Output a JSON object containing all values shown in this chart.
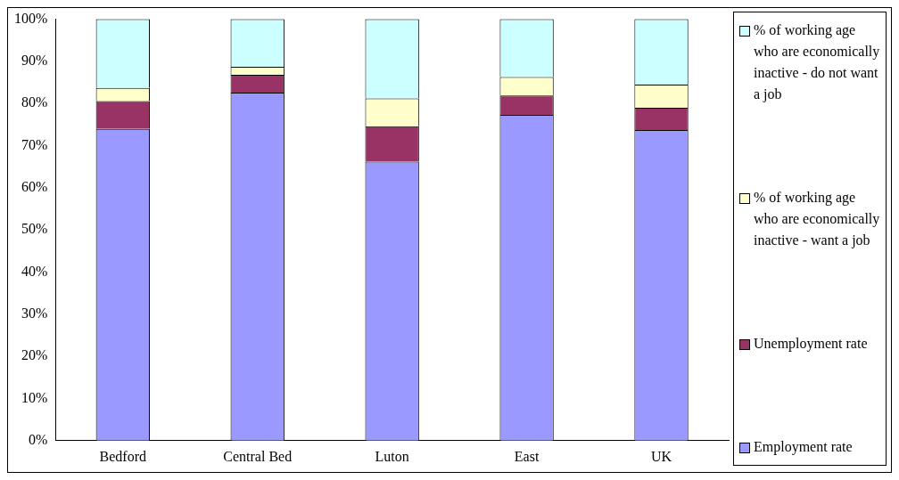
{
  "chart_data": {
    "type": "bar",
    "stacked": true,
    "categories": [
      "Bedford",
      "Central Bed",
      "Luton",
      "East",
      "UK"
    ],
    "series": [
      {
        "name": "Employment rate",
        "color": "#9999ff",
        "values": [
          74.0,
          82.6,
          66.2,
          77.3,
          73.7
        ]
      },
      {
        "name": "Unemployment rate",
        "color": "#993366",
        "values": [
          6.6,
          4.2,
          8.4,
          4.6,
          5.3
        ]
      },
      {
        "name": "% of working age who are economically inactive - want a job",
        "color": "#ffffcc",
        "values": [
          3.1,
          1.9,
          6.6,
          4.4,
          5.5
        ]
      },
      {
        "name": "% of working age who are economically inactive - do not want a job",
        "color": "#ccffff",
        "values": [
          16.3,
          11.3,
          18.8,
          13.7,
          15.5
        ]
      }
    ],
    "ylim": [
      0,
      100
    ],
    "yticks": [
      {
        "value": 0,
        "label": "0%"
      },
      {
        "value": 10,
        "label": "10%"
      },
      {
        "value": 20,
        "label": "20%"
      },
      {
        "value": 30,
        "label": "30%"
      },
      {
        "value": 40,
        "label": "40%"
      },
      {
        "value": 50,
        "label": "50%"
      },
      {
        "value": 60,
        "label": "60%"
      },
      {
        "value": 70,
        "label": "70%"
      },
      {
        "value": 80,
        "label": "80%"
      },
      {
        "value": 90,
        "label": "90%"
      },
      {
        "value": 100,
        "label": "100%"
      }
    ],
    "grid": false,
    "legend": "right"
  }
}
